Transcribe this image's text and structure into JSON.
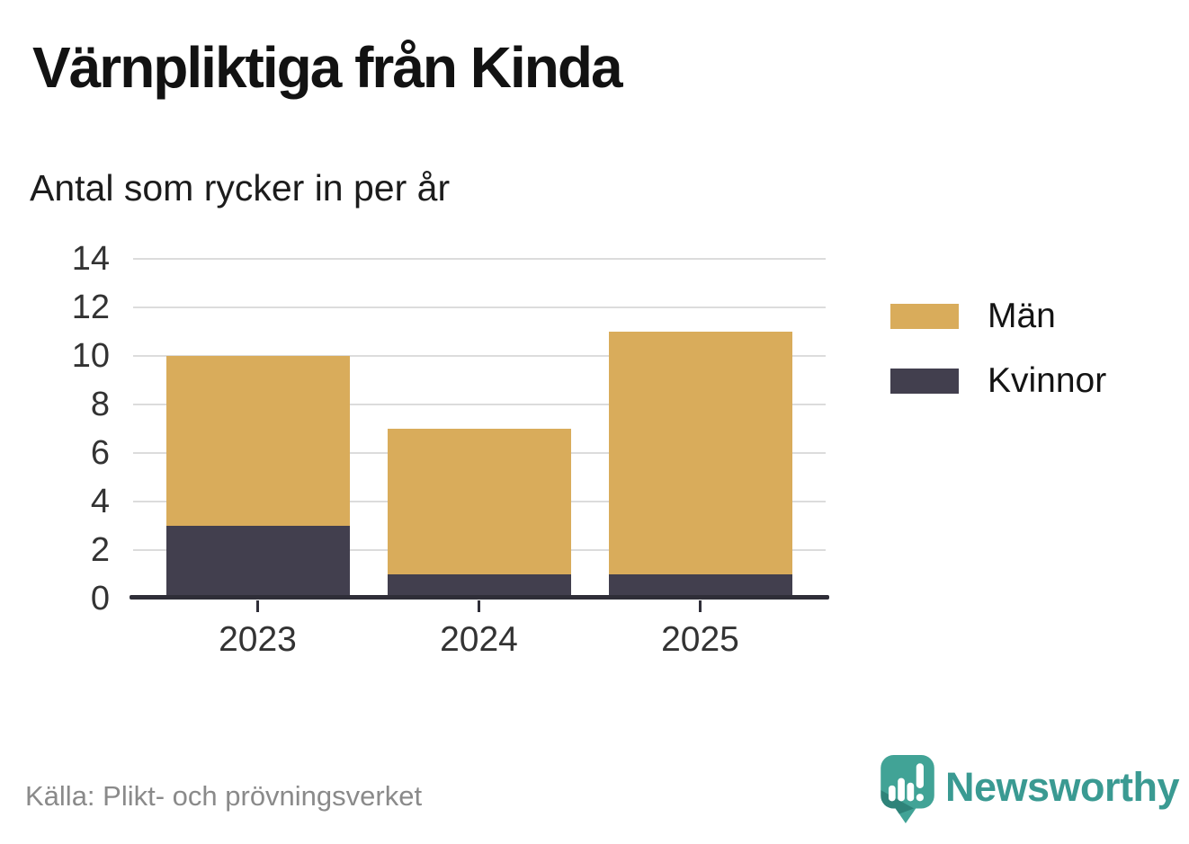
{
  "header": {
    "title": "Värnpliktiga från Kinda",
    "subtitle": "Antal som rycker in per år"
  },
  "chart_data": {
    "type": "bar",
    "stacked": true,
    "title": "Värnpliktiga från Kinda",
    "subtitle": "Antal som rycker in per år",
    "categories": [
      "2023",
      "2024",
      "2025"
    ],
    "series": [
      {
        "name": "Kvinnor",
        "values": [
          3,
          1,
          1
        ],
        "color": "#423f4e"
      },
      {
        "name": "Män",
        "values": [
          7,
          6,
          10
        ],
        "color": "#d9ac5b"
      }
    ],
    "totals": [
      10,
      7,
      11
    ],
    "legend_order": [
      "Män",
      "Kvinnor"
    ],
    "legend_position": "right-top",
    "xlabel": "",
    "ylabel": "",
    "yticks": [
      0,
      2,
      4,
      6,
      8,
      10,
      12,
      14
    ],
    "ylim": [
      0,
      14
    ],
    "grid": true
  },
  "footer": {
    "source": "Källa: Plikt- och prövningsverket",
    "brand": "Newsworthy",
    "brand_icon": "speech-bubble-bar-chart-icon"
  },
  "colors": {
    "men": "#d9ac5b",
    "women": "#423f4e",
    "axis": "#2f2e38",
    "grid": "#dcdcdc",
    "tick_label": "#333333",
    "source_text": "#8a8a8a",
    "brand_teal": "#3a9a92",
    "brand_teal_dark": "#2c7e74",
    "title_text": "#121212"
  }
}
